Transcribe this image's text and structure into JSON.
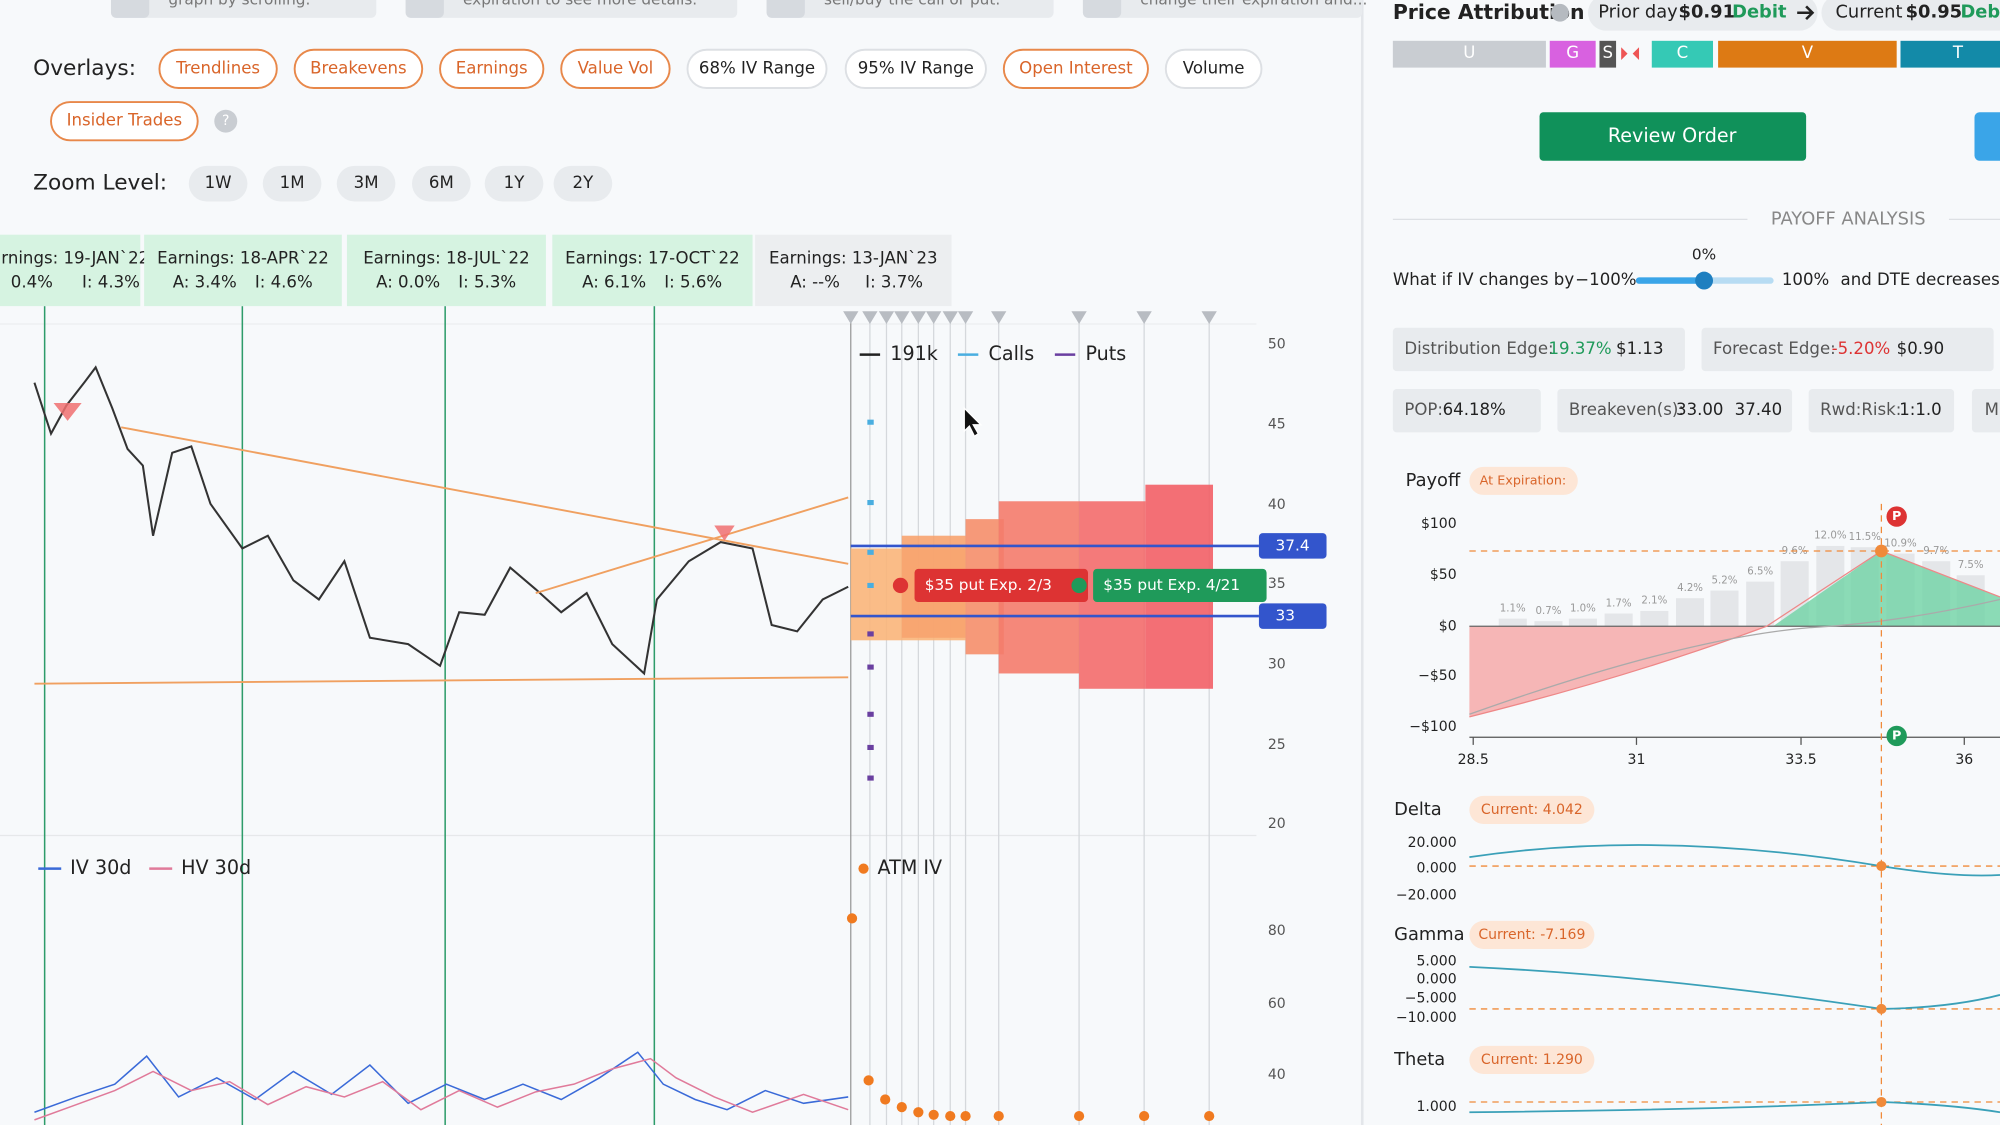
{
  "hints": [
    "graph by scrolling.",
    "expiration to see more details.",
    "sell/buy the call or put.",
    "change their expiration and..."
  ],
  "overlays": {
    "label": "Overlays:",
    "buttons": [
      "Trendlines",
      "Breakevens",
      "Earnings",
      "Value Vol",
      "68% IV Range",
      "95% IV Range",
      "Open Interest",
      "Volume",
      "Insider Trades"
    ],
    "help": "?"
  },
  "zoom": {
    "label": "Zoom Level:",
    "buttons": [
      "1W",
      "1M",
      "3M",
      "6M",
      "1Y",
      "2Y"
    ]
  },
  "earnings": [
    {
      "title": "arnings: 19-JAN`22",
      "actual": "0.4%",
      "implied": "I: 4.3%"
    },
    {
      "title": "Earnings: 18-APR`22",
      "actual": "A: 3.4%",
      "implied": "I: 4.6%"
    },
    {
      "title": "Earnings: 18-JUL`22",
      "actual": "A: 0.0%",
      "implied": "I: 5.3%"
    },
    {
      "title": "Earnings: 17-OCT`22",
      "actual": "A: 6.1%",
      "implied": "I: 5.6%"
    },
    {
      "title": "Earnings: 13-JAN`23",
      "actual": "A: --%",
      "implied": "I: 3.7%"
    }
  ],
  "price_chart": {
    "yticks": [
      "50",
      "45",
      "40",
      "35",
      "30",
      "25",
      "20"
    ],
    "legend": {
      "volume": "191k",
      "calls": "Calls",
      "puts": "Puts"
    },
    "levels": [
      "37.4",
      "33"
    ],
    "tags": [
      "$35 put Exp. 2/3",
      "$35 put Exp. 4/21"
    ]
  },
  "iv_chart": {
    "legend": [
      "IV 30d",
      "HV 30d"
    ],
    "atm": "ATM IV",
    "yticks": [
      "80",
      "60",
      "40"
    ]
  },
  "attribution": {
    "title": "Price Attribution",
    "prior_label": "Prior day",
    "prior_value": "$0.91",
    "prior_type": "Debit",
    "current_label": "Current",
    "current_value": "$0.95",
    "current_type": "Debi",
    "segments": [
      "U",
      "G",
      "S",
      "C",
      "V",
      "T"
    ]
  },
  "review_button": "Review Order",
  "payoff_analysis": {
    "heading": "PAYOFF ANALYSIS",
    "iv_value": "0%",
    "iv_prompt": "What if IV changes by",
    "iv_min": "−100%",
    "iv_max": "100%",
    "dte_prompt": "and DTE decreases b",
    "distribution_edge": {
      "label": "Distribution Edge:",
      "percent": "19.37%",
      "value": "$1.13"
    },
    "forecast_edge": {
      "label": "Forecast Edge:",
      "percent": "-5.20%",
      "value": "$0.90"
    },
    "pop": {
      "label": "POP:",
      "value": "64.18%"
    },
    "breakevens": {
      "label": "Breakeven(s):",
      "values": [
        "33.00",
        "37.40"
      ]
    },
    "reward_risk": {
      "label": "Rwd:Risk:",
      "value": "1:1.0"
    },
    "more": "M"
  },
  "payoff": {
    "title": "Payoff",
    "mode": "At Expiration:",
    "yticks": [
      "$100",
      "$50",
      "$0",
      "−$50",
      "−$100"
    ],
    "xticks": [
      "28.5",
      "31",
      "33.5",
      "36"
    ],
    "bar_labels": [
      "1.1%",
      "0.7%",
      "1.0%",
      "1.7%",
      "2.1%",
      "4.2%",
      "5.2%",
      "6.5%",
      "9.6%",
      "12.0%",
      "11.5%",
      "10.9%",
      "9.7%",
      "7.5%"
    ],
    "marker": "P"
  },
  "greeks": [
    {
      "name": "Delta",
      "current": "Current:  4.042",
      "ticks": [
        "20.000",
        "0.000",
        "−20.000"
      ]
    },
    {
      "name": "Gamma",
      "current": "Current:  -7.169",
      "ticks": [
        "5.000",
        "0.000",
        "−5.000",
        "−10.000"
      ]
    },
    {
      "name": "Theta",
      "current": "Current:  1.290",
      "ticks": [
        "1.000"
      ]
    }
  ]
}
